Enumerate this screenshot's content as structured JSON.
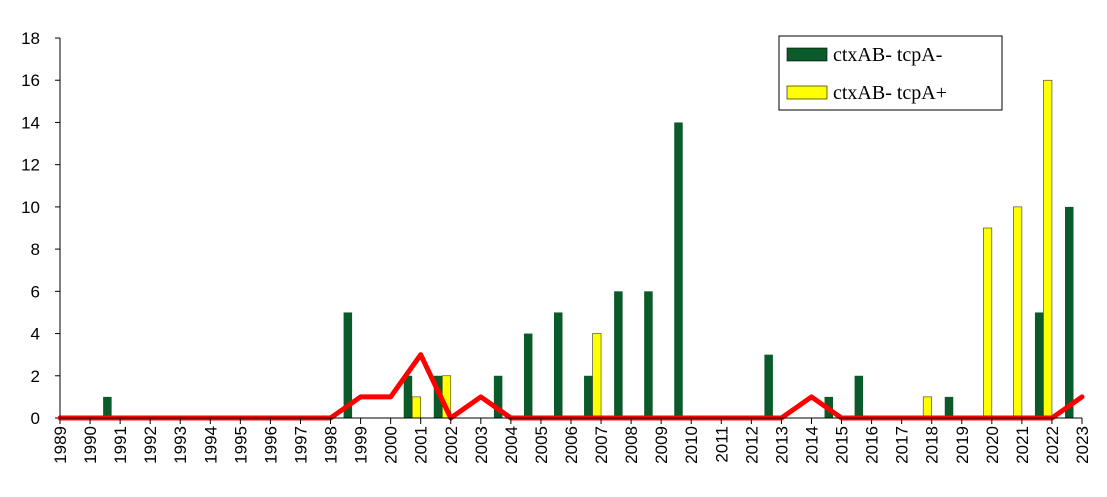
{
  "chart_data": {
    "type": "bar",
    "categories": [
      "1989",
      "1990",
      "1991",
      "1992",
      "1993",
      "1994",
      "1995",
      "1996",
      "1997",
      "1998",
      "1999",
      "2000",
      "2001",
      "2002",
      "2003",
      "2004",
      "2005",
      "2006",
      "2007",
      "2008",
      "2009",
      "2010",
      "2011",
      "2012",
      "2013",
      "2014",
      "2015",
      "2016",
      "2017",
      "2018",
      "2019",
      "2020",
      "2021",
      "2022",
      "2023"
    ],
    "series": [
      {
        "name": "ctxAB- tcpA-",
        "color": "#0b5a2a",
        "values": [
          0,
          0,
          1,
          0,
          0,
          0,
          0,
          0,
          0,
          0,
          5,
          0,
          2,
          2,
          0,
          2,
          4,
          5,
          2,
          6,
          6,
          14,
          0,
          0,
          3,
          0,
          1,
          2,
          0,
          0,
          1,
          0,
          0,
          5,
          10
        ]
      },
      {
        "name": "ctxAB- tcpA+",
        "color": "#ffff00",
        "values": [
          0,
          0,
          0,
          0,
          0,
          0,
          0,
          0,
          0,
          0,
          0,
          0,
          1,
          2,
          0,
          0,
          0,
          0,
          4,
          0,
          0,
          0,
          0,
          0,
          0,
          0,
          0,
          0,
          0,
          1,
          0,
          9,
          10,
          16,
          0
        ]
      }
    ],
    "line": {
      "color": "#ff0000",
      "values": [
        0,
        0,
        0,
        0,
        0,
        0,
        0,
        0,
        0,
        0,
        1,
        1,
        3,
        0,
        1,
        0,
        0,
        0,
        0,
        0,
        0,
        0,
        0,
        0,
        0,
        1,
        0,
        0,
        0,
        0,
        0,
        0,
        0,
        0,
        1
      ]
    },
    "title": "",
    "xlabel": "",
    "ylabel": "",
    "ylim": [
      0,
      18
    ],
    "yticks": [
      "0",
      "2",
      "4",
      "6",
      "8",
      "10",
      "12",
      "14",
      "16",
      "18"
    ],
    "grid": false,
    "legend_position": "top-right"
  }
}
